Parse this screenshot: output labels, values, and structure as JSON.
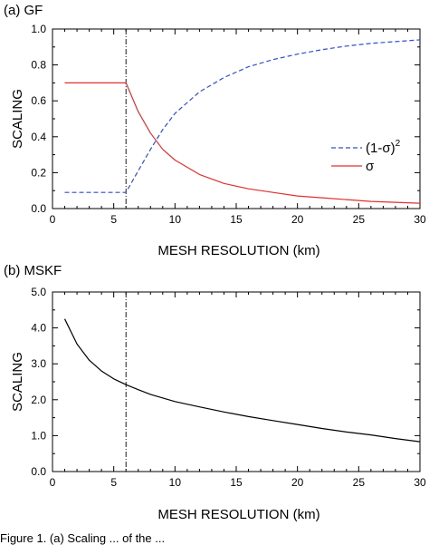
{
  "caption": "Figure 1. (a) Scaling ... of the ...",
  "chart_data": [
    {
      "type": "line",
      "panel_label": "(a) GF",
      "xlabel": "MESH RESOLUTION (km)",
      "ylabel": "SCALING",
      "xlim": [
        0,
        30
      ],
      "ylim": [
        0,
        1.0
      ],
      "xticks": [
        "0",
        "5",
        "10",
        "15",
        "20",
        "25",
        "30"
      ],
      "yticks": [
        "0.0",
        "0.2",
        "0.4",
        "0.6",
        "0.8",
        "1.0"
      ],
      "vline_x": 6,
      "legend_position": "middle-right",
      "series": [
        {
          "name": "(1-σ)",
          "name_superscript": "2",
          "color": "#2f4fd1",
          "style": "dashed",
          "x": [
            1,
            2,
            3,
            4,
            5,
            6,
            7,
            8,
            9,
            10,
            12,
            14,
            16,
            18,
            20,
            22,
            24,
            26,
            28,
            30
          ],
          "y": [
            0.09,
            0.09,
            0.09,
            0.09,
            0.09,
            0.09,
            0.21,
            0.33,
            0.44,
            0.53,
            0.65,
            0.73,
            0.79,
            0.83,
            0.86,
            0.885,
            0.905,
            0.92,
            0.93,
            0.94
          ]
        },
        {
          "name": "σ",
          "name_superscript": "",
          "color": "#e03030",
          "style": "solid",
          "x": [
            1,
            2,
            3,
            4,
            5,
            6,
            7,
            8,
            9,
            10,
            12,
            14,
            16,
            18,
            20,
            22,
            24,
            26,
            28,
            30
          ],
          "y": [
            0.7,
            0.7,
            0.7,
            0.7,
            0.7,
            0.7,
            0.54,
            0.42,
            0.33,
            0.27,
            0.19,
            0.14,
            0.11,
            0.09,
            0.07,
            0.06,
            0.05,
            0.04,
            0.035,
            0.03
          ]
        }
      ]
    },
    {
      "type": "line",
      "panel_label": "(b) MSKF",
      "xlabel": "MESH RESOLUTION (km)",
      "ylabel": "SCALING",
      "xlim": [
        0,
        30
      ],
      "ylim": [
        0,
        5.0
      ],
      "xticks": [
        "0",
        "5",
        "10",
        "15",
        "20",
        "25",
        "30"
      ],
      "yticks": [
        "0.0",
        "1.0",
        "2.0",
        "3.0",
        "4.0",
        "5.0"
      ],
      "vline_x": 6,
      "series": [
        {
          "name": "",
          "color": "#000000",
          "style": "solid",
          "x": [
            1,
            2,
            3,
            4,
            5,
            6,
            7,
            8,
            10,
            12,
            14,
            16,
            18,
            20,
            22,
            24,
            26,
            28,
            30
          ],
          "y": [
            4.25,
            3.55,
            3.1,
            2.8,
            2.58,
            2.42,
            2.28,
            2.15,
            1.95,
            1.8,
            1.66,
            1.53,
            1.42,
            1.31,
            1.2,
            1.1,
            1.02,
            0.92,
            0.83
          ]
        }
      ]
    }
  ]
}
